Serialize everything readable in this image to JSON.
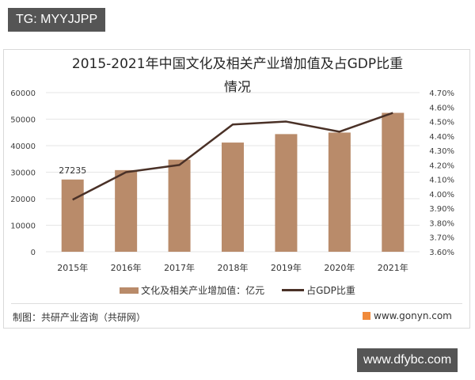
{
  "watermarks": {
    "top_tag": "TG: MYYJJPP",
    "bottom_tag": "www.dfybc.com"
  },
  "chart": {
    "title_line1": "2015-2021年中国文化及相关产业增加值及占GDP比重",
    "title_line2": "情况",
    "legend": {
      "bar": "文化及相关产业增加值：亿元",
      "line": "占GDP比重"
    },
    "footer_left": "制图：共研产业咨询（共研网）",
    "footer_right": "www.gonyn.com",
    "colors": {
      "bar": "#b98b6a",
      "line": "#4a3127",
      "grid": "#e6e6e6"
    }
  },
  "chart_data": {
    "type": "bar",
    "title": "2015-2021年中国文化及相关产业增加值及占GDP比重情况",
    "categories": [
      "2015年",
      "2016年",
      "2017年",
      "2018年",
      "2019年",
      "2020年",
      "2021年"
    ],
    "series": [
      {
        "name": "文化及相关产业增加值：亿元",
        "type": "bar",
        "axis": "left",
        "values": [
          27235,
          30785,
          34722,
          41171,
          44363,
          44945,
          52385
        ],
        "data_labels": {
          "2015年": "27235"
        }
      },
      {
        "name": "占GDP比重",
        "type": "line",
        "axis": "right",
        "values": [
          3.96,
          4.15,
          4.2,
          4.48,
          4.5,
          4.43,
          4.56
        ],
        "unit": "%"
      }
    ],
    "y_left": {
      "ticks": [
        "0",
        "10000",
        "20000",
        "30000",
        "40000",
        "50000",
        "60000"
      ],
      "ylim": [
        0,
        60000
      ]
    },
    "y_right": {
      "ticks": [
        "3.60%",
        "3.70%",
        "3.80%",
        "3.90%",
        "4.00%",
        "4.10%",
        "4.20%",
        "4.30%",
        "4.40%",
        "4.50%",
        "4.60%",
        "4.70%"
      ],
      "ylim": [
        3.6,
        4.7
      ]
    },
    "grid": true,
    "legend_position": "bottom",
    "source": "制图：共研产业咨询（共研网）"
  }
}
